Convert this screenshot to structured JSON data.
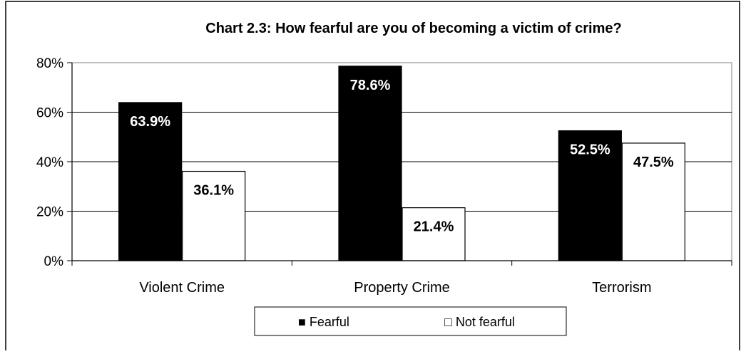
{
  "chart_data": {
    "type": "bar",
    "title": "Chart 2.3: How fearful are you of becoming a victim of crime?",
    "xlabel": "",
    "ylabel": "",
    "categories": [
      "Violent Crime",
      "Property Crime",
      "Terrorism"
    ],
    "series": [
      {
        "name": "Fearful",
        "values": [
          63.9,
          78.6,
          52.5
        ],
        "color": "#000000",
        "label_color": "#ffffff",
        "labels": [
          "63.9%",
          "78.6%",
          "52.5%"
        ]
      },
      {
        "name": "Not fearful",
        "values": [
          36.1,
          21.4,
          47.5
        ],
        "color": "#ffffff",
        "label_color": "#000000",
        "labels": [
          "36.1%",
          "21.4%",
          "47.5%"
        ]
      }
    ],
    "ylim": [
      0,
      80
    ],
    "yticks": [
      0,
      20,
      40,
      60,
      80
    ],
    "ytick_labels": [
      "0%",
      "20%",
      "40%",
      "60%",
      "80%"
    ],
    "grid": true,
    "legend_position": "bottom",
    "legend": {
      "fearful_label": "■ Fearful",
      "not_fearful_label": "□ Not fearful"
    }
  }
}
